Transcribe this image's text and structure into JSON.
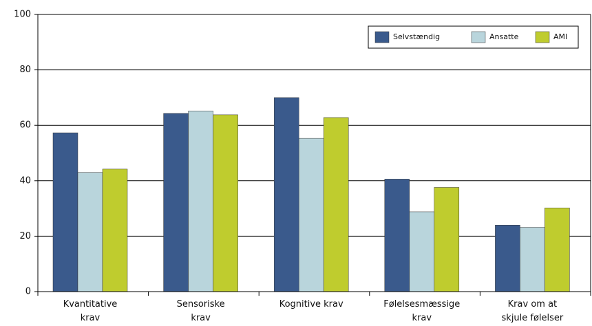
{
  "chart_data": {
    "type": "bar",
    "categories": [
      "Kvantitative\nkrav",
      "Sensoriske\nkrav",
      "Kognitive krav",
      "Følelsesmæssige\nkrav",
      "Krav om at\nskjule følelser"
    ],
    "series": [
      {
        "name": "Selvstændig",
        "color": "#3a5a8c",
        "values": [
          57.3,
          64.3,
          70,
          40.6,
          24
        ]
      },
      {
        "name": "Ansatte",
        "color": "#b9d5dc",
        "values": [
          43,
          65.2,
          55.3,
          28.8,
          23.2
        ]
      },
      {
        "name": "AMI",
        "color": "#bfcc2e",
        "values": [
          44.2,
          63.8,
          62.8,
          37.6,
          30.2
        ]
      }
    ],
    "ylim": [
      0,
      100
    ],
    "yticks": [
      0,
      20,
      40,
      60,
      80,
      100
    ],
    "grid": true,
    "legend": "top-right"
  }
}
